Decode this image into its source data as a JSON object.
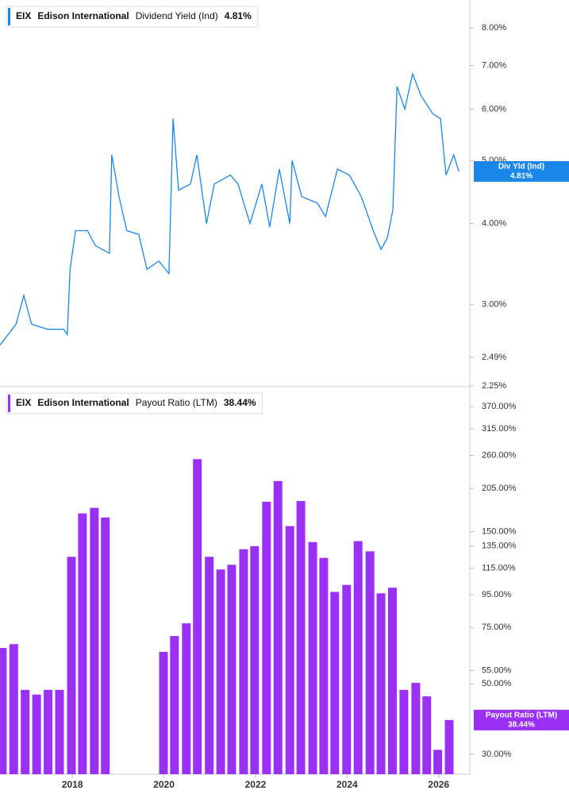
{
  "chart_data": [
    {
      "type": "line",
      "ticker": "EIX",
      "company": "Edison International",
      "last_label": "4.81%",
      "axis_tag": "Div Yld (Ind)",
      "log_scale": true,
      "xlim": [
        2016.42,
        2026.68
      ],
      "ylim": [
        2.25,
        8.83
      ],
      "yticks": [
        {
          "value": 2.25,
          "label": "2.25%"
        },
        {
          "value": 2.49,
          "label": "2.49%"
        },
        {
          "value": 3,
          "label": "3.00%"
        },
        {
          "value": 4,
          "label": "4.00%"
        },
        {
          "value": 5,
          "label": "5.00%"
        },
        {
          "value": 6,
          "label": "6.00%"
        },
        {
          "value": 7,
          "label": "7.00%"
        },
        {
          "value": 8,
          "label": "8.00%"
        }
      ],
      "x": [
        2016.42,
        2016.77,
        2016.94,
        2017.11,
        2017.46,
        2017.81,
        2017.89,
        2017.95,
        2018.07,
        2018.33,
        2018.5,
        2018.81,
        2018.86,
        2019.02,
        2019.19,
        2019.45,
        2019.63,
        2019.89,
        2020.11,
        2020.2,
        2020.32,
        2020.58,
        2020.72,
        2020.93,
        2021.1,
        2021.45,
        2021.62,
        2021.88,
        2022.14,
        2022.31,
        2022.52,
        2022.75,
        2022.8,
        2023.01,
        2023.35,
        2023.53,
        2023.79,
        2024.05,
        2024.31,
        2024.57,
        2024.74,
        2024.88,
        2025.0,
        2025.09,
        2025.26,
        2025.43,
        2025.61,
        2025.87,
        2026.04,
        2026.16,
        2026.33,
        2026.44
      ],
      "series": [
        {
          "name": "Dividend Yield (Ind)",
          "color": "#1a86e8",
          "values": [
            2.6,
            2.8,
            3.1,
            2.8,
            2.75,
            2.75,
            2.7,
            3.4,
            3.9,
            3.9,
            3.7,
            3.6,
            5.1,
            4.4,
            3.9,
            3.85,
            3.4,
            3.5,
            3.35,
            5.8,
            4.5,
            4.6,
            5.1,
            4.0,
            4.6,
            4.75,
            4.6,
            4.0,
            4.6,
            3.95,
            4.85,
            4.0,
            5.0,
            4.4,
            4.3,
            4.1,
            4.85,
            4.75,
            4.4,
            3.9,
            3.65,
            3.8,
            4.2,
            6.5,
            6.0,
            6.8,
            6.3,
            5.9,
            5.8,
            4.75,
            5.1,
            4.81
          ]
        }
      ]
    },
    {
      "type": "bar",
      "ticker": "EIX",
      "company": "Edison International",
      "last_label": "38.44%",
      "log_scale": true,
      "xlim": [
        2016.42,
        2026.68
      ],
      "ylim": [
        26,
        427
      ],
      "xticks": [
        2018,
        2020,
        2022,
        2024,
        2026
      ],
      "yticks": [
        {
          "value": 30,
          "label": "30.00%"
        },
        {
          "value": 50,
          "label": "50.00%"
        },
        {
          "value": 55,
          "label": "55.00%"
        },
        {
          "value": 75,
          "label": "75.00%"
        },
        {
          "value": 95,
          "label": "95.00%"
        },
        {
          "value": 115,
          "label": "115.00%"
        },
        {
          "value": 135,
          "label": "135.00%"
        },
        {
          "value": 150,
          "label": "150.00%"
        },
        {
          "value": 205,
          "label": "205.00%"
        },
        {
          "value": 260,
          "label": "260.00%"
        },
        {
          "value": 315,
          "label": "315.00%"
        },
        {
          "value": 370,
          "label": "370.00%"
        }
      ],
      "x": [
        2016.47,
        2016.72,
        2016.97,
        2017.22,
        2017.47,
        2017.72,
        2017.98,
        2018.22,
        2018.48,
        2018.72,
        2019.99,
        2020.23,
        2020.49,
        2020.73,
        2020.99,
        2021.24,
        2021.48,
        2021.74,
        2021.98,
        2022.24,
        2022.49,
        2022.75,
        2022.99,
        2023.25,
        2023.49,
        2023.73,
        2023.99,
        2024.24,
        2024.5,
        2024.74,
        2024.99,
        2025.24,
        2025.5,
        2025.74,
        2025.98,
        2026.23
      ],
      "series": [
        {
          "name": "Payout Ratio (LTM)",
          "color": "#9b30f5",
          "values": [
            64.7,
            66.5,
            47.8,
            46.2,
            47.8,
            47.8,
            125,
            171,
            178,
            166,
            62.9,
            70.5,
            77.3,
            253,
            125,
            114,
            118,
            132,
            135,
            186,
            216,
            156,
            187,
            139,
            124,
            97,
            102,
            140,
            130,
            96,
            100,
            47.8,
            50.3,
            45.6,
            31,
            38.44
          ]
        }
      ]
    }
  ]
}
